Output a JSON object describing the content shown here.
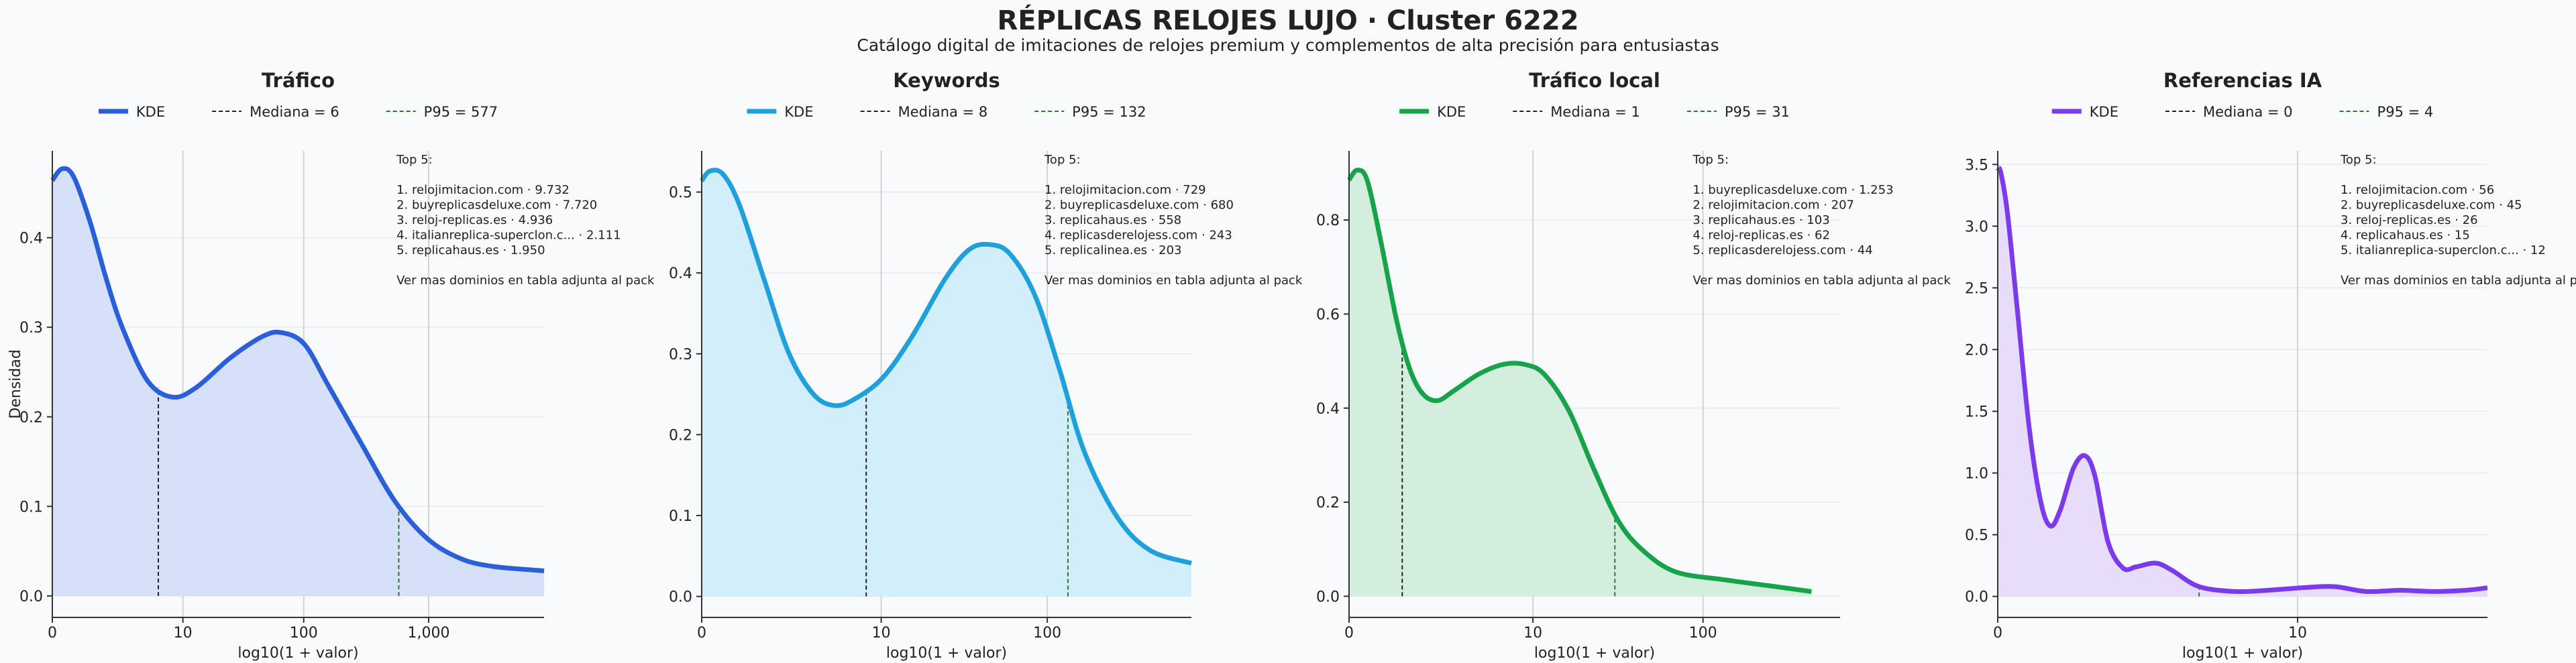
{
  "title": "RÉPLICAS RELOJES LUJO · Cluster 6222",
  "subtitle": "Catálogo digital de imitaciones de relojes premium y complementos de alta precisión para entusiastas",
  "chart_data": [
    {
      "type": "line",
      "title": "Tráfico",
      "xlabel": "log10(1 + valor)",
      "ylabel": "Densidad",
      "xlim": [
        0,
        3.92
      ],
      "ylim": [
        -0.024,
        0.497
      ],
      "xticks": [
        0,
        {
          "value": 1.041,
          "label": "10"
        },
        {
          "value": 2.004,
          "label": "100"
        },
        {
          "value": 3.0,
          "label": "1,000"
        }
      ],
      "yticks": [
        {
          "value": 0,
          "label": "0.0"
        },
        0.1,
        0.2,
        0.3,
        0.4
      ],
      "grid": true,
      "series": [
        {
          "name": "KDE",
          "color": "#2b5fd9",
          "fill": "#d6e0f8",
          "x": [
            0,
            0.079,
            0.17,
            0.3,
            0.43,
            0.56,
            0.76,
            0.96,
            1.15,
            1.42,
            1.68,
            1.83,
            2.01,
            2.2,
            2.46,
            2.73,
            2.99,
            3.25,
            3.51,
            3.92
          ],
          "values": [
            0.464,
            0.477,
            0.468,
            0.418,
            0.354,
            0.299,
            0.24,
            0.222,
            0.233,
            0.266,
            0.29,
            0.294,
            0.281,
            0.235,
            0.171,
            0.106,
            0.064,
            0.042,
            0.033,
            0.028
          ]
        }
      ],
      "median": {
        "label": "Mediana = 6",
        "x": 0.845,
        "color": "#222222"
      },
      "p95": {
        "label": "P95 = 577",
        "x": 2.762,
        "color": "#2a7a2a"
      },
      "annotation": [
        "Top 5:",
        "",
        "1. relojimitacion.com · 9.732",
        "2. buyreplicasdeluxe.com · 7.720",
        "3. reloj-replicas.es · 4.936",
        "4. italianreplica-superclon.c... · 2.111",
        "5. replicahaus.es · 1.950",
        "",
        "Ver mas dominios en tabla adjunta al pack"
      ]
    },
    {
      "type": "line",
      "title": "Keywords",
      "xlabel": "log10(1 + valor)",
      "xlim": [
        0,
        2.84
      ],
      "ylim": [
        -0.026,
        0.551
      ],
      "xticks": [
        0,
        {
          "value": 1.041,
          "label": "10"
        },
        {
          "value": 2.004,
          "label": "100"
        }
      ],
      "yticks": [
        {
          "value": 0,
          "label": "0.0"
        },
        0.1,
        0.2,
        0.3,
        0.4,
        0.5
      ],
      "grid": true,
      "series": [
        {
          "name": "KDE",
          "color": "#1ea0dc",
          "fill": "#d2eefa",
          "x": [
            0,
            0.048,
            0.124,
            0.219,
            0.362,
            0.505,
            0.648,
            0.771,
            0.886,
            1.048,
            1.219,
            1.41,
            1.552,
            1.676,
            1.79,
            1.933,
            2.076,
            2.219,
            2.41,
            2.6,
            2.84
          ],
          "values": [
            0.514,
            0.526,
            0.522,
            0.484,
            0.392,
            0.301,
            0.25,
            0.236,
            0.244,
            0.27,
            0.321,
            0.392,
            0.429,
            0.435,
            0.423,
            0.372,
            0.28,
            0.179,
            0.098,
            0.057,
            0.041
          ]
        }
      ],
      "median": {
        "label": "Mediana = 8",
        "x": 0.954,
        "color": "#222222"
      },
      "p95": {
        "label": "P95 = 132",
        "x": 2.124,
        "color": "#2a7a2a"
      },
      "annotation": [
        "Top 5:",
        "",
        "1. relojimitacion.com · 729",
        "2. buyreplicasdeluxe.com · 680",
        "3. replicahaus.es · 558",
        "4. replicasderelojess.com · 243",
        "5. replicalinea.es · 203",
        "",
        "Ver mas dominios en tabla adjunta al pack"
      ]
    },
    {
      "type": "line",
      "title": "Tráfico local",
      "xlabel": "log10(1 + valor)",
      "xlim": [
        0,
        2.78
      ],
      "ylim": [
        -0.045,
        0.947
      ],
      "xticks": [
        0,
        {
          "value": 1.041,
          "label": "10"
        },
        {
          "value": 2.004,
          "label": "100"
        }
      ],
      "yticks": [
        {
          "value": 0,
          "label": "0.0"
        },
        0.2,
        0.4,
        0.6,
        0.8
      ],
      "grid": true,
      "series": [
        {
          "name": "KDE",
          "color": "#16a34a",
          "fill": "#d3eedc",
          "x": [
            0,
            0.046,
            0.102,
            0.176,
            0.269,
            0.344,
            0.418,
            0.501,
            0.594,
            0.733,
            0.873,
            0.993,
            1.105,
            1.244,
            1.383,
            1.523,
            1.662,
            1.848,
            2.126,
            2.405,
            2.618
          ],
          "values": [
            0.885,
            0.906,
            0.885,
            0.762,
            0.587,
            0.483,
            0.43,
            0.416,
            0.437,
            0.472,
            0.493,
            0.493,
            0.472,
            0.395,
            0.273,
            0.161,
            0.098,
            0.052,
            0.035,
            0.021,
            0.01
          ]
        }
      ],
      "median": {
        "label": "Mediana = 1",
        "x": 0.301,
        "color": "#222222"
      },
      "p95": {
        "label": "P95 = 31",
        "x": 1.505,
        "color": "#2a7a2a"
      },
      "annotation": [
        "Top 5:",
        "",
        "1. buyreplicasdeluxe.com · 1.253",
        "2. relojimitacion.com · 207",
        "3. replicahaus.es · 103",
        "4. reloj-replicas.es · 62",
        "5. replicasderelojess.com · 44",
        "",
        "Ver mas dominios en tabla adjunta al pack"
      ]
    },
    {
      "type": "line",
      "title": "Referencias IA",
      "xlabel": "log10(1 + valor)",
      "xlim": [
        0,
        1.7
      ],
      "ylim": [
        -0.17,
        3.61
      ],
      "xticks": [
        0,
        {
          "value": 1.041,
          "label": "10"
        }
      ],
      "yticks": [
        {
          "value": 0,
          "label": "0.0"
        },
        0.5,
        {
          "value": 1,
          "label": "1.0"
        },
        1.5,
        {
          "value": 2,
          "label": "2.0"
        },
        2.5,
        {
          "value": 3,
          "label": "3.0"
        },
        3.5
      ],
      "grid": true,
      "series": [
        {
          "name": "KDE",
          "color": "#7c3aed",
          "fill": "#e8dcfb",
          "x": [
            0,
            0.011,
            0.034,
            0.069,
            0.109,
            0.149,
            0.183,
            0.217,
            0.263,
            0.303,
            0.338,
            0.383,
            0.435,
            0.481,
            0.549,
            0.606,
            0.698,
            0.824,
            0.938,
            1.053,
            1.167,
            1.281,
            1.396,
            1.51,
            1.625,
            1.7
          ],
          "values": [
            3.47,
            3.43,
            3.1,
            2.3,
            1.37,
            0.77,
            0.57,
            0.7,
            1.04,
            1.14,
            0.97,
            0.44,
            0.23,
            0.24,
            0.27,
            0.21,
            0.08,
            0.04,
            0.05,
            0.07,
            0.08,
            0.04,
            0.05,
            0.04,
            0.05,
            0.07
          ]
        }
      ],
      "median": {
        "label": "Mediana = 0",
        "x": 0,
        "color": "#222222"
      },
      "p95": {
        "label": "P95 = 4",
        "x": 0.699,
        "color": "#2a7a2a"
      },
      "annotation": [
        "Top 5:",
        "",
        "1. relojimitacion.com · 56",
        "2. buyreplicasdeluxe.com · 45",
        "3. reloj-replicas.es · 26",
        "4. replicahaus.es · 15",
        "5. italianreplica-superclon.c... · 12",
        "",
        "Ver mas dominios en tabla adjunta al pack"
      ]
    }
  ]
}
